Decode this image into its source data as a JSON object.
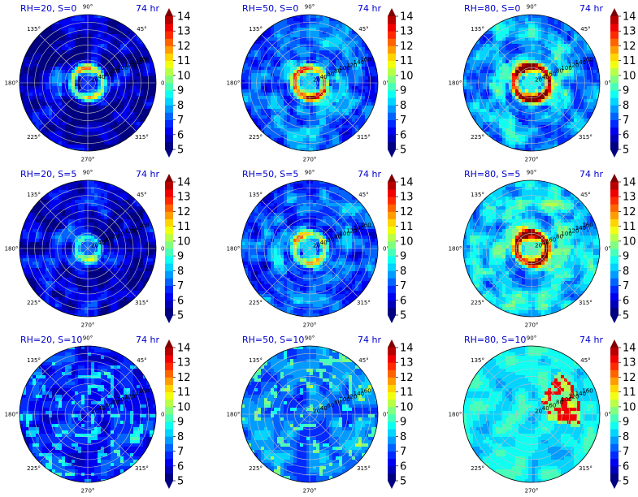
{
  "chart_data": {
    "type": "heatmap",
    "projection": "polar",
    "colormap": "jet",
    "colorbar": {
      "levels": [
        5,
        6,
        7,
        8,
        9,
        10,
        11,
        12,
        13,
        14
      ],
      "tick_labels": [
        "5",
        "6",
        "7",
        "8",
        "9",
        "10",
        "11",
        "12",
        "13",
        "14"
      ],
      "extend": "both"
    },
    "angle_ticks": [
      "90°",
      "45°",
      "0°",
      "315°",
      "270°",
      "225°",
      "180°",
      "135°"
    ],
    "angle_tick_degrees": [
      90,
      45,
      0,
      315,
      270,
      225,
      180,
      135
    ],
    "radial_ticks": [
      "20",
      "40",
      "60",
      "80",
      "100",
      "120",
      "140",
      "160"
    ],
    "radial_tick_values": [
      20,
      40,
      60,
      80,
      100,
      120,
      140,
      160
    ],
    "radial_range": [
      0,
      180
    ],
    "time_label": "74 hr",
    "panels": [
      {
        "title": "RH=20, S=0",
        "time": "74 hr",
        "background_level": 5.6,
        "core_level": 10,
        "ring_radius": 40,
        "pattern": "spiral"
      },
      {
        "title": "RH=50, S=0",
        "time": "74 hr",
        "background_level": 7.0,
        "core_level": 12,
        "ring_radius": 40,
        "pattern": "spiral"
      },
      {
        "title": "RH=80, S=0",
        "time": "74 hr",
        "background_level": 7.6,
        "core_level": 14,
        "ring_radius": 45,
        "pattern": "spiral"
      },
      {
        "title": "RH=20, S=5",
        "time": "74 hr",
        "background_level": 6.0,
        "core_level": 9,
        "ring_radius": 30,
        "pattern": "spiral"
      },
      {
        "title": "RH=50, S=5",
        "time": "74 hr",
        "background_level": 7.0,
        "core_level": 11,
        "ring_radius": 40,
        "pattern": "spiral"
      },
      {
        "title": "RH=80, S=5",
        "time": "74 hr",
        "background_level": 8.2,
        "core_level": 14,
        "ring_radius": 40,
        "pattern": "spiral"
      },
      {
        "title": "RH=20, S=10",
        "time": "74 hr",
        "background_level": 6.5,
        "core_level": 8,
        "ring_radius": 0,
        "pattern": "scattered"
      },
      {
        "title": "RH=50, S=10",
        "time": "74 hr",
        "background_level": 7.4,
        "core_level": 9,
        "ring_radius": 0,
        "pattern": "scattered"
      },
      {
        "title": "RH=80, S=10",
        "time": "74 hr",
        "background_level": 8.6,
        "core_level": 13,
        "ring_radius": 60,
        "pattern": "asymmetric"
      }
    ]
  }
}
